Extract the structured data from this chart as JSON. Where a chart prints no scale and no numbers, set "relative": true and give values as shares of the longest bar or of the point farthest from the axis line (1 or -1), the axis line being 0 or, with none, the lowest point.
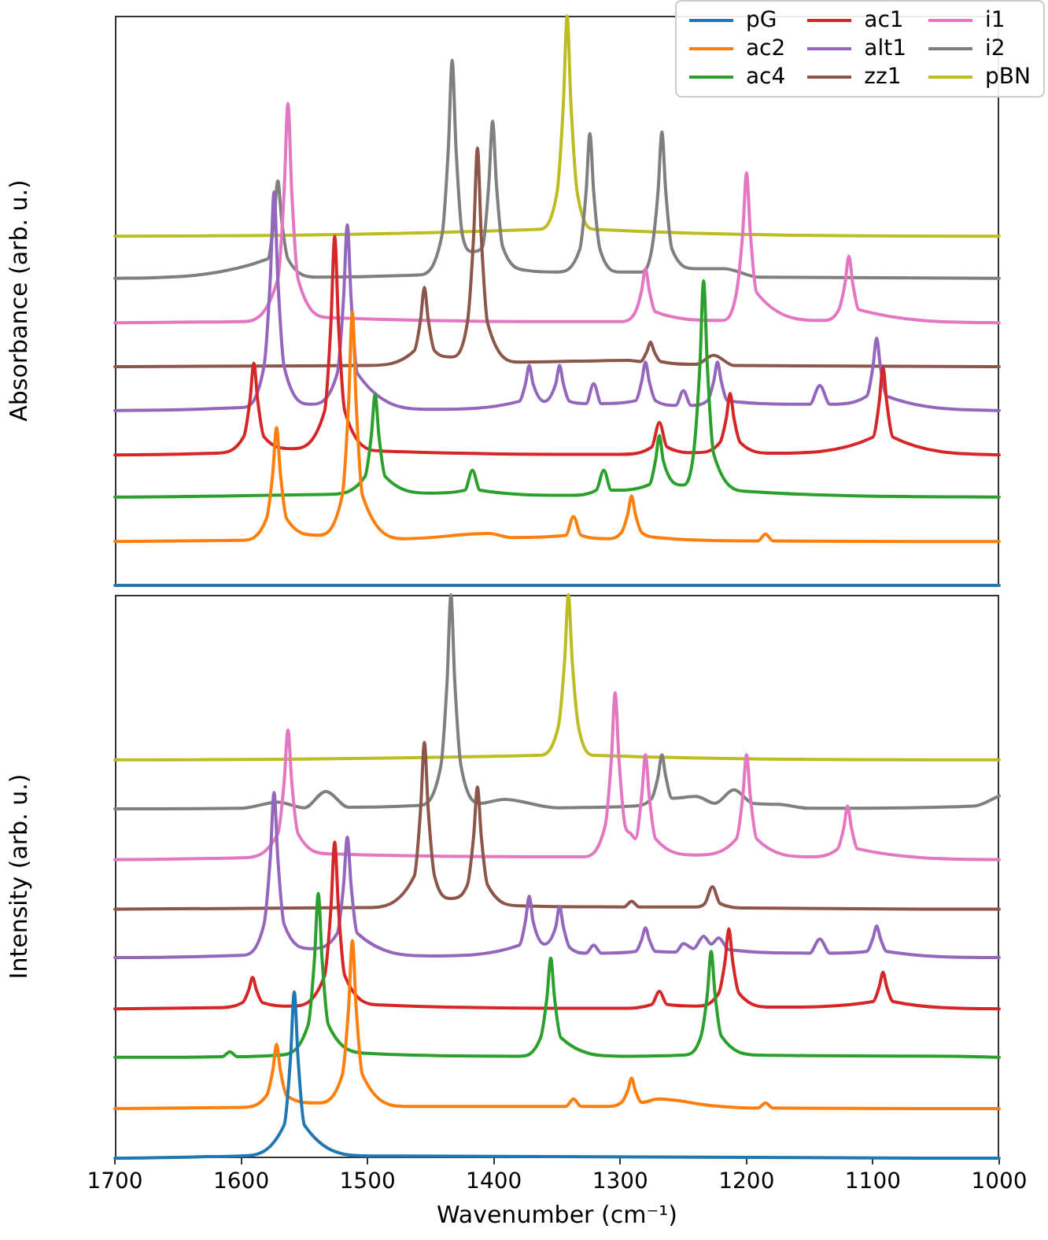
{
  "chart_data": [
    {
      "type": "line",
      "ylabel": "Absorbance (arb. u.)",
      "relative": true,
      "xlim": [
        1700,
        1000
      ],
      "xticks": [
        1700,
        1600,
        1500,
        1400,
        1300,
        1200,
        1100,
        1000
      ],
      "tick_labels": false,
      "legend": "top right",
      "marker": "none",
      "line_style": "solid",
      "series": [
        {
          "name": "pG",
          "color": "#1f77b4",
          "x": [
            1700,
            1000
          ],
          "values": [
            0,
            0
          ]
        },
        {
          "name": "ac2",
          "color": "#ff7f0e",
          "x": [
            1700,
            1600,
            1580,
            1575,
            1572,
            1569,
            1564,
            1540,
            1520,
            1515,
            1512,
            1509,
            1504,
            1470,
            1404,
            1386,
            1343,
            1337,
            1331,
            1310,
            1299,
            1294,
            1291,
            1288,
            1283,
            1270,
            1191,
            1185,
            1179,
            1000
          ],
          "values": [
            0.077,
            0.079,
            0.117,
            0.197,
            0.277,
            0.197,
            0.117,
            0.088,
            0.158,
            0.319,
            0.48,
            0.319,
            0.158,
            0.082,
            0.091,
            0.084,
            0.088,
            0.121,
            0.088,
            0.082,
            0.093,
            0.125,
            0.157,
            0.125,
            0.093,
            0.084,
            0.078,
            0.09,
            0.078,
            0.077
          ]
        },
        {
          "name": "ac4",
          "color": "#2ca02c",
          "x": [
            1700,
            1530,
            1502,
            1497,
            1494,
            1491,
            1486,
            1450,
            1423,
            1417,
            1411,
            1340,
            1319,
            1313,
            1307,
            1277,
            1272,
            1269,
            1266,
            1251,
            1242,
            1237,
            1234,
            1231,
            1226,
            1200,
            1000
          ],
          "values": [
            0.155,
            0.16,
            0.191,
            0.263,
            0.335,
            0.263,
            0.191,
            0.162,
            0.167,
            0.202,
            0.167,
            0.158,
            0.167,
            0.202,
            0.167,
            0.177,
            0.22,
            0.263,
            0.22,
            0.176,
            0.231,
            0.383,
            0.535,
            0.383,
            0.231,
            0.165,
            0.155
          ]
        },
        {
          "name": "ac1",
          "color": "#d62728",
          "x": [
            1700,
            1620,
            1598,
            1593,
            1590,
            1587,
            1582,
            1560,
            1534,
            1529,
            1526,
            1523,
            1518,
            1490,
            1300,
            1275,
            1269,
            1263,
            1240,
            1221,
            1216,
            1213,
            1210,
            1205,
            1180,
            1100,
            1095,
            1092,
            1089,
            1084,
            1000
          ],
          "values": [
            0.229,
            0.232,
            0.261,
            0.326,
            0.39,
            0.326,
            0.261,
            0.24,
            0.306,
            0.459,
            0.613,
            0.459,
            0.306,
            0.236,
            0.23,
            0.243,
            0.286,
            0.243,
            0.233,
            0.251,
            0.294,
            0.337,
            0.294,
            0.251,
            0.232,
            0.26,
            0.321,
            0.383,
            0.321,
            0.26,
            0.229
          ]
        },
        {
          "name": "alt1",
          "color": "#9467bd",
          "x": [
            1700,
            1600,
            1582,
            1577,
            1574,
            1571,
            1566,
            1545,
            1524,
            1519,
            1516,
            1513,
            1508,
            1450,
            1380,
            1375,
            1372,
            1369,
            1360,
            1351,
            1348,
            1345,
            1340,
            1327,
            1321,
            1315,
            1288,
            1283,
            1280,
            1277,
            1272,
            1256,
            1250,
            1244,
            1231,
            1226,
            1223,
            1220,
            1215,
            1150,
            1142,
            1134,
            1105,
            1100,
            1097,
            1094,
            1089,
            1000
          ],
          "values": [
            0.307,
            0.312,
            0.384,
            0.537,
            0.691,
            0.537,
            0.384,
            0.318,
            0.372,
            0.503,
            0.633,
            0.503,
            0.372,
            0.309,
            0.323,
            0.354,
            0.386,
            0.354,
            0.323,
            0.354,
            0.386,
            0.354,
            0.323,
            0.319,
            0.354,
            0.319,
            0.324,
            0.358,
            0.392,
            0.358,
            0.324,
            0.316,
            0.342,
            0.316,
            0.324,
            0.358,
            0.392,
            0.358,
            0.324,
            0.318,
            0.351,
            0.318,
            0.332,
            0.383,
            0.434,
            0.383,
            0.332,
            0.307
          ]
        },
        {
          "name": "zz1",
          "color": "#8c564b",
          "x": [
            1700,
            1500,
            1463,
            1458,
            1455,
            1452,
            1447,
            1434,
            1421,
            1416,
            1413,
            1410,
            1405,
            1380,
            1293,
            1284,
            1279,
            1276,
            1273,
            1268,
            1240,
            1226,
            1210,
            1000
          ],
          "values": [
            0.384,
            0.386,
            0.412,
            0.467,
            0.523,
            0.467,
            0.412,
            0.401,
            0.461,
            0.614,
            0.768,
            0.614,
            0.461,
            0.392,
            0.395,
            0.393,
            0.41,
            0.427,
            0.41,
            0.393,
            0.388,
            0.404,
            0.386,
            0.384
          ]
        },
        {
          "name": "i1",
          "color": "#e377c2",
          "x": [
            1700,
            1600,
            1571,
            1566,
            1563,
            1560,
            1555,
            1530,
            1300,
            1288,
            1283,
            1280,
            1277,
            1272,
            1220,
            1208,
            1203,
            1200,
            1197,
            1192,
            1140,
            1127,
            1122,
            1119,
            1116,
            1111,
            1000
          ],
          "values": [
            0.461,
            0.463,
            0.538,
            0.692,
            0.846,
            0.692,
            0.538,
            0.47,
            0.463,
            0.48,
            0.518,
            0.556,
            0.518,
            0.48,
            0.465,
            0.514,
            0.619,
            0.724,
            0.619,
            0.514,
            0.465,
            0.484,
            0.531,
            0.578,
            0.531,
            0.484,
            0.461
          ]
        },
        {
          "name": "i2",
          "color": "#7f7f7f",
          "x": [
            1700,
            1579,
            1574,
            1571,
            1568,
            1563,
            1540,
            1460,
            1441,
            1436,
            1433,
            1430,
            1425,
            1417,
            1409,
            1404,
            1401,
            1398,
            1393,
            1374,
            1350,
            1332,
            1327,
            1324,
            1321,
            1316,
            1300,
            1283,
            1275,
            1270,
            1267,
            1264,
            1259,
            1241,
            1218,
            1190,
            1000
          ],
          "values": [
            0.539,
            0.573,
            0.642,
            0.71,
            0.642,
            0.573,
            0.541,
            0.545,
            0.616,
            0.769,
            0.922,
            0.769,
            0.616,
            0.586,
            0.594,
            0.705,
            0.815,
            0.705,
            0.594,
            0.553,
            0.55,
            0.59,
            0.691,
            0.793,
            0.691,
            0.59,
            0.55,
            0.55,
            0.59,
            0.693,
            0.796,
            0.693,
            0.59,
            0.556,
            0.556,
            0.541,
            0.539
          ]
        },
        {
          "name": "pBN",
          "color": "#bcbd22",
          "x": [
            1700,
            1365,
            1350,
            1345,
            1342,
            1339,
            1334,
            1320,
            1000
          ],
          "values": [
            0.613,
            0.625,
            0.69,
            0.845,
            1,
            0.845,
            0.69,
            0.625,
            0.613
          ]
        }
      ]
    },
    {
      "type": "line",
      "xlabel": "Wavenumber (cm⁻¹)",
      "ylabel": "Intensity (arb. u.)",
      "relative": true,
      "xlim": [
        1700,
        1000
      ],
      "xticks": [
        1700,
        1600,
        1500,
        1400,
        1300,
        1200,
        1100,
        1000
      ],
      "tick_labels": "x",
      "marker": "none",
      "line_style": "solid",
      "series": [
        {
          "color": "#1f77b4",
          "x": [
            1700,
            1600,
            1566,
            1561,
            1558,
            1555,
            1550,
            1500,
            1000
          ],
          "values": [
            0,
            0.004,
            0.059,
            0.177,
            0.295,
            0.177,
            0.059,
            0.004,
            0
          ]
        },
        {
          "color": "#ff7f0e",
          "x": [
            1700,
            1600,
            1580,
            1575,
            1572,
            1569,
            1564,
            1540,
            1520,
            1515,
            1512,
            1509,
            1504,
            1470,
            1343,
            1337,
            1331,
            1310,
            1299,
            1294,
            1291,
            1288,
            1283,
            1270,
            1226,
            1191,
            1185,
            1179,
            1000
          ],
          "values": [
            0.088,
            0.09,
            0.111,
            0.156,
            0.202,
            0.156,
            0.111,
            0.098,
            0.148,
            0.267,
            0.386,
            0.267,
            0.148,
            0.092,
            0.092,
            0.105,
            0.092,
            0.092,
            0.099,
            0.12,
            0.142,
            0.12,
            0.099,
            0.105,
            0.093,
            0.089,
            0.098,
            0.089,
            0.088
          ]
        },
        {
          "color": "#2ca02c",
          "x": [
            1700,
            1615,
            1609,
            1603,
            1570,
            1547,
            1542,
            1539,
            1536,
            1531,
            1500,
            1380,
            1363,
            1358,
            1355,
            1352,
            1347,
            1300,
            1250,
            1236,
            1231,
            1228,
            1225,
            1220,
            1190,
            1036,
            1000
          ],
          "values": [
            0.179,
            0.18,
            0.189,
            0.18,
            0.183,
            0.237,
            0.354,
            0.47,
            0.354,
            0.237,
            0.186,
            0.181,
            0.214,
            0.285,
            0.355,
            0.285,
            0.214,
            0.181,
            0.183,
            0.217,
            0.292,
            0.367,
            0.292,
            0.217,
            0.183,
            0.181,
            0.179
          ]
        },
        {
          "color": "#d62728",
          "x": [
            1700,
            1620,
            1599,
            1594,
            1591,
            1588,
            1583,
            1560,
            1534,
            1529,
            1526,
            1523,
            1518,
            1490,
            1300,
            1275,
            1269,
            1263,
            1240,
            1222,
            1217,
            1214,
            1211,
            1206,
            1180,
            1100,
            1095,
            1092,
            1089,
            1084,
            1000
          ],
          "values": [
            0.265,
            0.267,
            0.276,
            0.299,
            0.321,
            0.299,
            0.276,
            0.27,
            0.324,
            0.443,
            0.561,
            0.443,
            0.324,
            0.272,
            0.266,
            0.273,
            0.296,
            0.273,
            0.27,
            0.293,
            0.35,
            0.407,
            0.35,
            0.293,
            0.268,
            0.278,
            0.304,
            0.33,
            0.304,
            0.278,
            0.265
          ]
        },
        {
          "color": "#9467bd",
          "x": [
            1700,
            1600,
            1582,
            1577,
            1574,
            1571,
            1566,
            1545,
            1524,
            1519,
            1516,
            1513,
            1508,
            1450,
            1380,
            1375,
            1372,
            1369,
            1360,
            1351,
            1348,
            1345,
            1340,
            1327,
            1321,
            1315,
            1288,
            1283,
            1280,
            1277,
            1272,
            1256,
            1250,
            1242,
            1234,
            1228,
            1222,
            1214,
            1150,
            1142,
            1134,
            1105,
            1100,
            1097,
            1094,
            1089,
            1000
          ],
          "values": [
            0.356,
            0.36,
            0.415,
            0.532,
            0.649,
            0.532,
            0.415,
            0.372,
            0.399,
            0.484,
            0.57,
            0.484,
            0.399,
            0.359,
            0.378,
            0.421,
            0.465,
            0.421,
            0.38,
            0.411,
            0.447,
            0.411,
            0.374,
            0.364,
            0.378,
            0.364,
            0.367,
            0.388,
            0.409,
            0.388,
            0.367,
            0.366,
            0.381,
            0.372,
            0.394,
            0.38,
            0.391,
            0.37,
            0.364,
            0.389,
            0.364,
            0.367,
            0.39,
            0.412,
            0.39,
            0.367,
            0.356
          ]
        },
        {
          "color": "#8c564b",
          "x": [
            1700,
            1500,
            1463,
            1458,
            1455,
            1452,
            1447,
            1434,
            1421,
            1416,
            1413,
            1410,
            1405,
            1380,
            1297,
            1291,
            1285,
            1240,
            1233,
            1227,
            1221,
            1200,
            1000
          ],
          "values": [
            0.442,
            0.445,
            0.501,
            0.62,
            0.738,
            0.62,
            0.501,
            0.461,
            0.485,
            0.572,
            0.659,
            0.572,
            0.485,
            0.448,
            0.446,
            0.456,
            0.446,
            0.446,
            0.452,
            0.482,
            0.452,
            0.444,
            0.442
          ]
        },
        {
          "color": "#e377c2",
          "x": [
            1700,
            1600,
            1571,
            1566,
            1563,
            1560,
            1555,
            1530,
            1330,
            1312,
            1307,
            1304,
            1301,
            1296,
            1292,
            1288,
            1283,
            1280,
            1277,
            1272,
            1240,
            1208,
            1203,
            1200,
            1197,
            1192,
            1150,
            1128,
            1123,
            1120,
            1117,
            1112,
            1000
          ],
          "values": [
            0.53,
            0.533,
            0.576,
            0.668,
            0.76,
            0.668,
            0.576,
            0.54,
            0.535,
            0.589,
            0.708,
            0.826,
            0.708,
            0.589,
            0.577,
            0.567,
            0.642,
            0.716,
            0.642,
            0.567,
            0.538,
            0.567,
            0.642,
            0.716,
            0.642,
            0.567,
            0.535,
            0.549,
            0.587,
            0.625,
            0.587,
            0.549,
            0.53
          ]
        },
        {
          "color": "#7f7f7f",
          "x": [
            1700,
            1600,
            1571,
            1550,
            1533,
            1515,
            1460,
            1442,
            1437,
            1434,
            1431,
            1426,
            1410,
            1392,
            1350,
            1317,
            1290,
            1275,
            1270,
            1267,
            1264,
            1259,
            1240,
            1225,
            1210,
            1195,
            1175,
            1150,
            1020,
            1000
          ],
          "values": [
            0.62,
            0.621,
            0.632,
            0.622,
            0.651,
            0.623,
            0.626,
            0.696,
            0.848,
            1,
            0.848,
            0.696,
            0.63,
            0.637,
            0.622,
            0.623,
            0.625,
            0.639,
            0.678,
            0.716,
            0.678,
            0.639,
            0.642,
            0.63,
            0.654,
            0.63,
            0.628,
            0.621,
            0.625,
            0.643
          ]
        },
        {
          "color": "#bcbd22",
          "x": [
            1700,
            1365,
            1349,
            1344,
            1341,
            1338,
            1333,
            1320,
            1000
          ],
          "values": [
            0.707,
            0.715,
            0.766,
            0.883,
            1,
            0.883,
            0.766,
            0.715,
            0.707
          ]
        }
      ]
    }
  ]
}
